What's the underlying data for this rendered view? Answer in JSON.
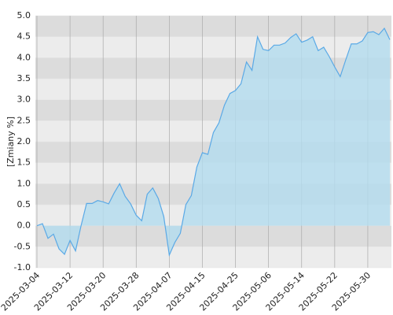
{
  "chart_data": {
    "type": "area",
    "y_label": "[Zmiany %]",
    "categories": [
      "2025-03-04",
      null,
      null,
      null,
      null,
      null,
      "2025-03-12",
      null,
      null,
      null,
      null,
      null,
      "2025-03-20",
      null,
      null,
      null,
      null,
      null,
      "2025-03-28",
      null,
      null,
      null,
      null,
      null,
      "2025-04-07",
      null,
      null,
      null,
      null,
      null,
      "2025-04-15",
      null,
      null,
      null,
      null,
      null,
      "2025-04-25",
      null,
      null,
      null,
      null,
      null,
      "2025-05-06",
      null,
      null,
      null,
      null,
      null,
      "2025-05-14",
      null,
      null,
      null,
      null,
      null,
      "2025-05-22",
      null,
      null,
      null,
      null,
      null,
      "2025-05-30",
      null,
      null,
      null,
      null
    ],
    "values": [
      0.0,
      0.05,
      -0.3,
      -0.2,
      -0.55,
      -0.68,
      -0.35,
      -0.6,
      0.0,
      0.53,
      0.53,
      0.6,
      0.57,
      0.52,
      0.78,
      1.0,
      0.7,
      0.52,
      0.25,
      0.12,
      0.75,
      0.9,
      0.65,
      0.22,
      -0.7,
      -0.4,
      -0.18,
      0.5,
      0.72,
      1.4,
      1.74,
      1.7,
      2.22,
      2.45,
      2.87,
      3.15,
      3.22,
      3.38,
      3.9,
      3.7,
      4.5,
      4.2,
      4.17,
      4.3,
      4.3,
      4.35,
      4.48,
      4.57,
      4.37,
      4.42,
      4.5,
      4.17,
      4.25,
      4.03,
      3.78,
      3.55,
      3.95,
      4.33,
      4.33,
      4.4,
      4.6,
      4.62,
      4.55,
      4.7,
      4.43
    ],
    "color": "#5aa9e6",
    "fill_color": "#b3dcef",
    "ylim": [
      -1,
      5
    ],
    "yticks": [
      {
        "value": -1,
        "label": "-1.0"
      },
      {
        "value": -0.5,
        "label": "-0.5"
      },
      {
        "value": 0,
        "label": "0.0"
      },
      {
        "value": 0.5,
        "label": "0.5"
      },
      {
        "value": 1,
        "label": "1.0"
      },
      {
        "value": 1.5,
        "label": "1.5"
      },
      {
        "value": 2,
        "label": "2.0"
      },
      {
        "value": 2.5,
        "label": "2.5"
      },
      {
        "value": 3,
        "label": "3.0"
      },
      {
        "value": 3.5,
        "label": "3.5"
      },
      {
        "value": 4,
        "label": "4.0"
      },
      {
        "value": 4.5,
        "label": "4.5"
      },
      {
        "value": 5,
        "label": "5.0"
      }
    ],
    "grid": true
  }
}
